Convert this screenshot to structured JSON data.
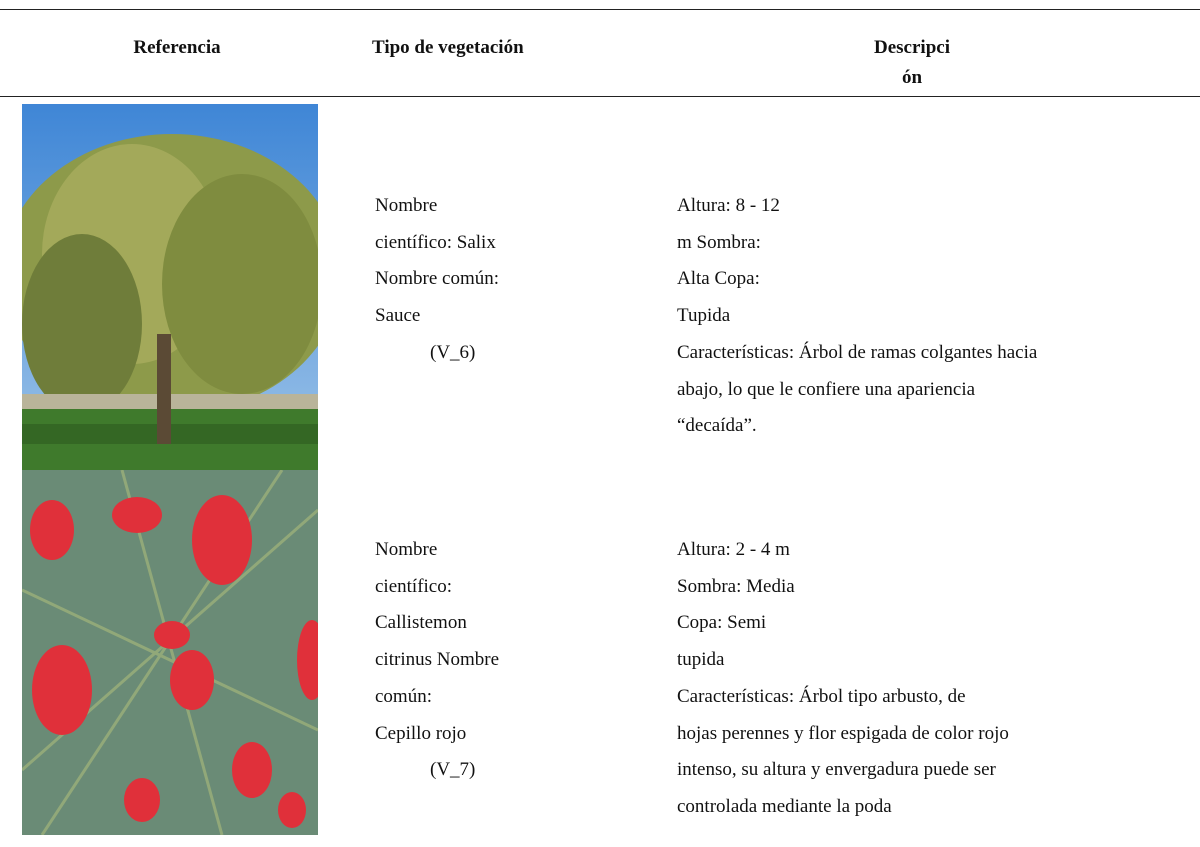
{
  "header": [
    [
      "Referencia"
    ],
    [
      "Tipo de vegetación"
    ],
    [
      "Descripci",
      "ón"
    ]
  ],
  "rows": [
    {
      "tipo": [
        "Nombre",
        "científico: Salix",
        "Nombre común:",
        "Sauce",
        "(V_6)"
      ],
      "descripcion": [
        "Altura: 8 - 12",
        "m Sombra:",
        "Alta Copa:",
        "Tupida",
        "Características: Árbol de ramas colgantes hacia",
        "abajo, lo que le confiere una apariencia",
        "“decaída”."
      ]
    },
    {
      "tipo": [
        "Nombre",
        "científico:",
        "Callistemon",
        "citrinus Nombre",
        "común:",
        "Cepillo rojo",
        "(V_7)"
      ],
      "descripcion": [
        "Altura: 2 - 4 m",
        "Sombra: Media",
        "Copa: Semi",
        "tupida",
        "Características: Árbol tipo arbusto, de",
        "hojas perennes y flor espigada de color rojo",
        "intenso, su altura y envergadura puede ser",
        "controlada mediante la poda"
      ]
    }
  ]
}
